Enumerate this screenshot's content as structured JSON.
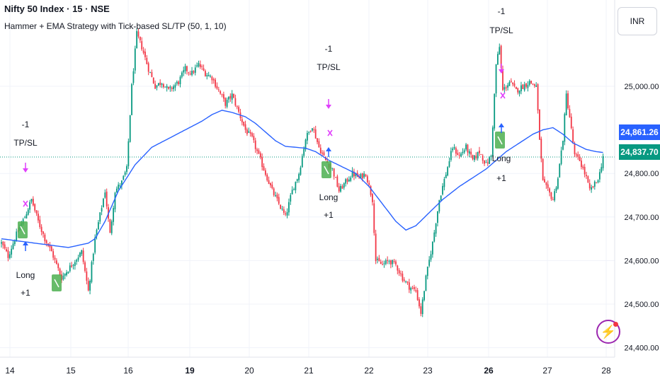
{
  "header": {
    "symbol_title": "Nifty 50 Index · 15 · NSE",
    "strategy_title": "Hammer + EMA Strategy with Tick-based SL/TP (50, 1, 10)"
  },
  "currency": "INR",
  "price_tags": {
    "ema": "24,861.26",
    "last": "24,837.70"
  },
  "colors": {
    "up": "#089981",
    "down": "#f23645",
    "ema": "#2962ff",
    "marker": "#e040fb",
    "hammer": "#4caf50"
  },
  "chart_data": {
    "type": "candlestick",
    "ylim": [
      24400,
      25130
    ],
    "y_ticks": [
      24400,
      24500,
      24600,
      24700,
      24800,
      25000
    ],
    "y_tick_labels": [
      "24,400.00",
      "24,500.00",
      "24,600.00",
      "24,700.00",
      "24,800.00",
      "25,000.00"
    ],
    "x_tick_labels": [
      "14",
      "15",
      "16",
      "19",
      "20",
      "21",
      "22",
      "23",
      "26",
      "27",
      "28"
    ],
    "x_tick_bold": [
      "19",
      "26"
    ],
    "close_path": [
      [
        0,
        24640
      ],
      [
        4,
        24610
      ],
      [
        9,
        24660
      ],
      [
        14,
        24700
      ],
      [
        18,
        24740
      ],
      [
        22,
        24690
      ],
      [
        26,
        24650
      ],
      [
        30,
        24620
      ],
      [
        36,
        24560
      ],
      [
        42,
        24590
      ],
      [
        48,
        24620
      ],
      [
        52,
        24530
      ],
      [
        56,
        24650
      ],
      [
        62,
        24760
      ],
      [
        65,
        24660
      ],
      [
        68,
        24760
      ],
      [
        72,
        24780
      ],
      [
        75,
        24810
      ],
      [
        78,
        25000
      ],
      [
        81,
        25120
      ],
      [
        84,
        25090
      ],
      [
        88,
        25040
      ],
      [
        92,
        25000
      ],
      [
        96,
        25010
      ],
      [
        100,
        24990
      ],
      [
        106,
        25010
      ],
      [
        110,
        25040
      ],
      [
        114,
        25030
      ],
      [
        118,
        25050
      ],
      [
        122,
        25030
      ],
      [
        126,
        25020
      ],
      [
        130,
        24990
      ],
      [
        134,
        24960
      ],
      [
        138,
        24980
      ],
      [
        142,
        24940
      ],
      [
        146,
        24900
      ],
      [
        150,
        24880
      ],
      [
        154,
        24840
      ],
      [
        158,
        24800
      ],
      [
        162,
        24760
      ],
      [
        166,
        24730
      ],
      [
        170,
        24700
      ],
      [
        174,
        24760
      ],
      [
        178,
        24800
      ],
      [
        182,
        24880
      ],
      [
        186,
        24910
      ],
      [
        190,
        24860
      ],
      [
        194,
        24830
      ],
      [
        198,
        24810
      ],
      [
        202,
        24760
      ],
      [
        206,
        24780
      ],
      [
        210,
        24800
      ],
      [
        214,
        24790
      ],
      [
        218,
        24800
      ],
      [
        222,
        24740
      ],
      [
        224,
        24600
      ],
      [
        228,
        24590
      ],
      [
        232,
        24600
      ],
      [
        236,
        24590
      ],
      [
        240,
        24560
      ],
      [
        244,
        24540
      ],
      [
        248,
        24530
      ],
      [
        251,
        24480
      ],
      [
        254,
        24560
      ],
      [
        258,
        24640
      ],
      [
        262,
        24740
      ],
      [
        266,
        24800
      ],
      [
        270,
        24860
      ],
      [
        274,
        24840
      ],
      [
        278,
        24860
      ],
      [
        282,
        24830
      ],
      [
        286,
        24850
      ],
      [
        290,
        24820
      ],
      [
        293,
        24840
      ],
      [
        296,
        25050
      ],
      [
        298,
        25090
      ],
      [
        300,
        24990
      ],
      [
        304,
        25010
      ],
      [
        308,
        24990
      ],
      [
        312,
        25000
      ],
      [
        316,
        25010
      ],
      [
        320,
        25000
      ],
      [
        322,
        24880
      ],
      [
        324,
        24780
      ],
      [
        327,
        24760
      ],
      [
        330,
        24740
      ],
      [
        333,
        24790
      ],
      [
        336,
        24880
      ],
      [
        338,
        24980
      ],
      [
        340,
        24930
      ],
      [
        343,
        24840
      ],
      [
        346,
        24830
      ],
      [
        350,
        24790
      ],
      [
        352,
        24760
      ],
      [
        356,
        24780
      ],
      [
        358,
        24800
      ],
      [
        360,
        24840
      ]
    ],
    "ema": [
      [
        0,
        24650
      ],
      [
        20,
        24640
      ],
      [
        40,
        24630
      ],
      [
        52,
        24640
      ],
      [
        56,
        24650
      ],
      [
        62,
        24690
      ],
      [
        70,
        24760
      ],
      [
        80,
        24820
      ],
      [
        90,
        24860
      ],
      [
        100,
        24880
      ],
      [
        110,
        24900
      ],
      [
        120,
        24920
      ],
      [
        126,
        24935
      ],
      [
        132,
        24945
      ],
      [
        138,
        24940
      ],
      [
        146,
        24930
      ],
      [
        152,
        24915
      ],
      [
        158,
        24895
      ],
      [
        164,
        24875
      ],
      [
        170,
        24862
      ],
      [
        176,
        24860
      ],
      [
        182,
        24858
      ],
      [
        188,
        24850
      ],
      [
        196,
        24830
      ],
      [
        204,
        24815
      ],
      [
        212,
        24800
      ],
      [
        220,
        24770
      ],
      [
        228,
        24730
      ],
      [
        236,
        24690
      ],
      [
        242,
        24670
      ],
      [
        248,
        24680
      ],
      [
        256,
        24710
      ],
      [
        264,
        24740
      ],
      [
        274,
        24770
      ],
      [
        282,
        24790
      ],
      [
        290,
        24810
      ],
      [
        296,
        24830
      ],
      [
        302,
        24850
      ],
      [
        310,
        24870
      ],
      [
        318,
        24890
      ],
      [
        324,
        24900
      ],
      [
        330,
        24905
      ],
      [
        336,
        24890
      ],
      [
        342,
        24870
      ],
      [
        350,
        24855
      ],
      [
        356,
        24850
      ],
      [
        360,
        24848
      ]
    ],
    "labels": {
      "long": "Long",
      "plus_one": "+1",
      "minus_one": "-1",
      "tp_sl": "TP/SL"
    },
    "series": [
      {
        "name": "Hammer + EMA Strategy with Tick-based SL/TP (50, 1, 10)"
      }
    ]
  }
}
